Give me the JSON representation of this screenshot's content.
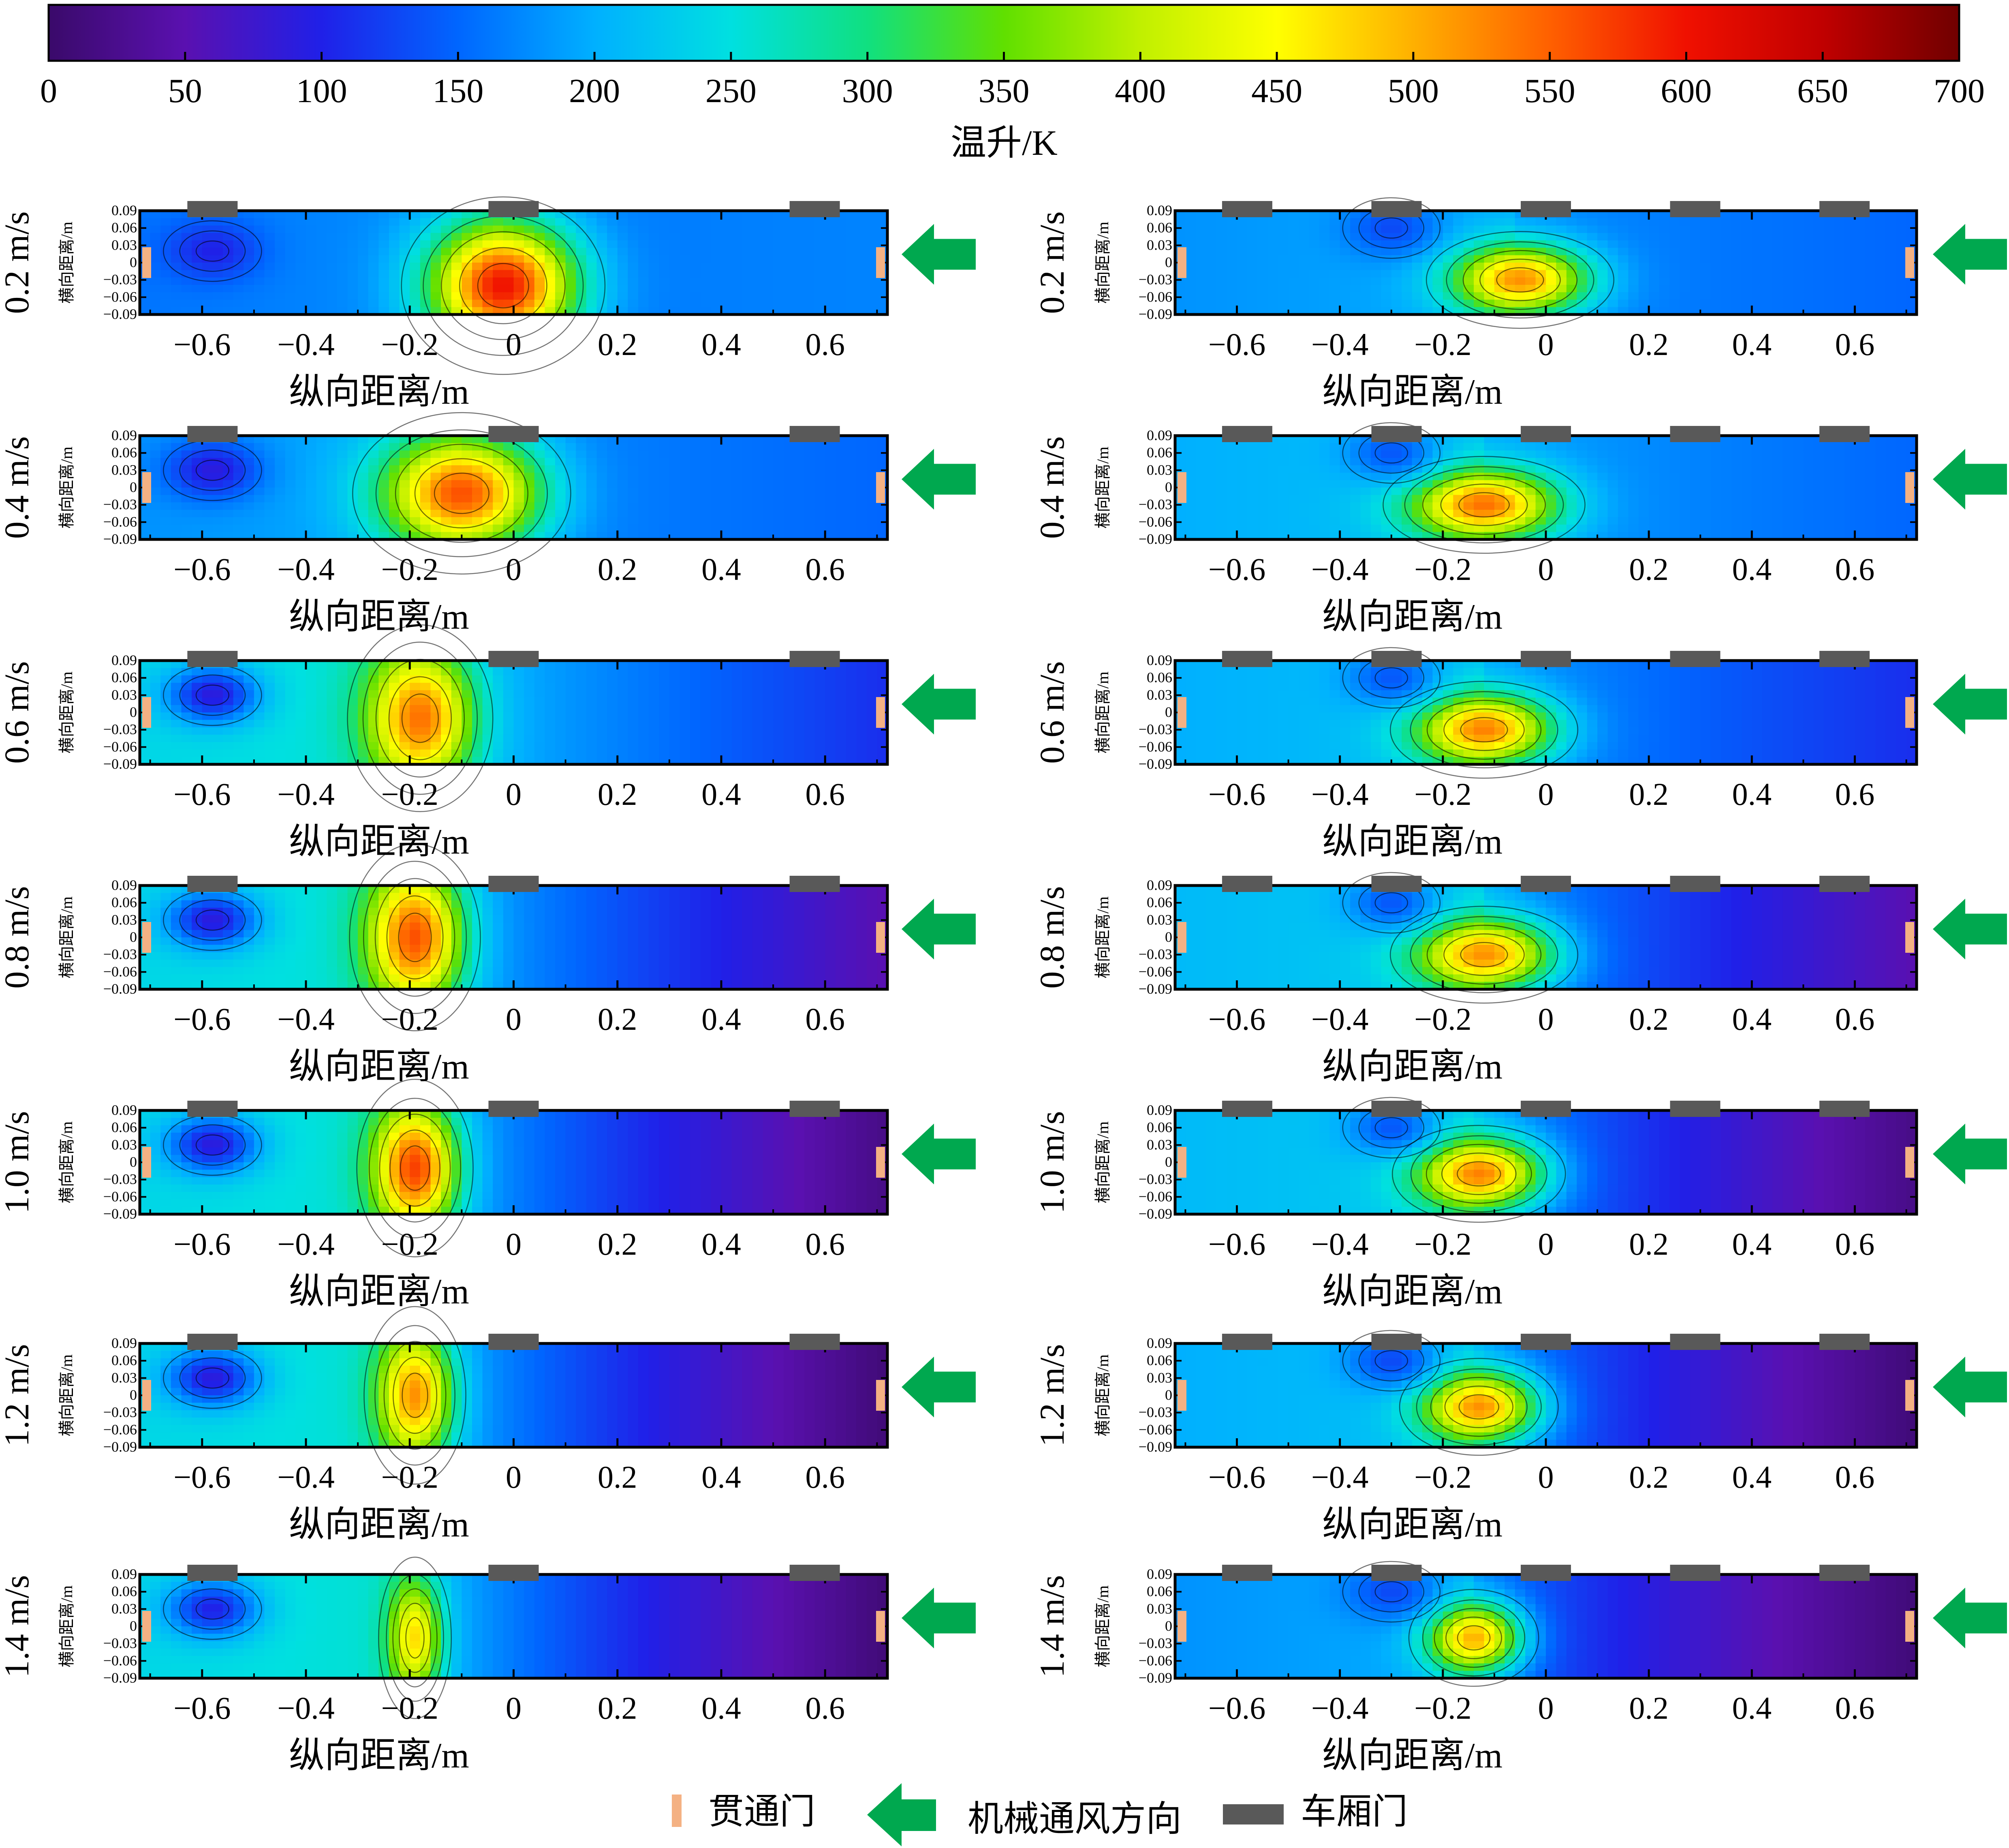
{
  "chart_data": {
    "type": "heatmap",
    "colorbar": {
      "title": "温升/K",
      "min": 0,
      "max": 700,
      "tick_labels": [
        "0",
        "50",
        "100",
        "150",
        "200",
        "250",
        "300",
        "350",
        "400",
        "450",
        "500",
        "550",
        "600",
        "650",
        "700"
      ],
      "colors": [
        "#3a0a6a",
        "#5a10b0",
        "#2020e8",
        "#0066ff",
        "#00b0ff",
        "#00e0e0",
        "#10e080",
        "#60e000",
        "#c0f000",
        "#ffff00",
        "#ffb000",
        "#ff6000",
        "#f01000",
        "#c00000",
        "#700000"
      ]
    },
    "x_ticks": [
      -0.6,
      -0.4,
      -0.2,
      0,
      0.2,
      0.4,
      0.6
    ],
    "x_tick_labels": [
      "−0.6",
      "−0.4",
      "−0.2",
      "0",
      "0.2",
      "0.4",
      "0.6"
    ],
    "y_tick_labels": [
      "0.09",
      "0.06",
      "0.03",
      "0",
      "−0.03",
      "−0.06",
      "−0.09"
    ],
    "xlim": [
      -0.72,
      0.72
    ],
    "ylim": [
      -0.09,
      0.09
    ],
    "xlabel": "纵向距离/m",
    "ylabel": "横向距离/m",
    "legend": {
      "passage_door": "贯通门",
      "airflow": "机械通风方向",
      "car_door": "车厢门"
    },
    "columns": [
      {
        "name": "left",
        "car_door_x": [
          -0.58,
          0.0,
          0.58
        ],
        "panels": [
          {
            "velocity": "0.2 m/s",
            "hot": {
              "x": -0.02,
              "y": -0.04,
              "peak": 600,
              "sx": 0.14,
              "sy": 0.11
            },
            "cool": {
              "x": -0.58,
              "y": 0.02,
              "peak": 100
            },
            "base": 160,
            "downstream_min": 170
          },
          {
            "velocity": "0.4 m/s",
            "hot": {
              "x": -0.1,
              "y": -0.01,
              "peak": 560,
              "sx": 0.15,
              "sy": 0.1
            },
            "cool": {
              "x": -0.58,
              "y": 0.03,
              "peak": 90
            },
            "base": 180,
            "downstream_min": 150
          },
          {
            "velocity": "0.6 m/s",
            "hot": {
              "x": -0.18,
              "y": -0.01,
              "peak": 540,
              "sx": 0.1,
              "sy": 0.12
            },
            "cool": {
              "x": -0.58,
              "y": 0.03,
              "peak": 90
            },
            "base": 240,
            "downstream_min": 110
          },
          {
            "velocity": "0.8 m/s",
            "hot": {
              "x": -0.19,
              "y": 0.0,
              "peak": 560,
              "sx": 0.09,
              "sy": 0.12
            },
            "cool": {
              "x": -0.58,
              "y": 0.03,
              "peak": 90
            },
            "base": 240,
            "downstream_min": 50
          },
          {
            "velocity": "1.0 m/s",
            "hot": {
              "x": -0.19,
              "y": -0.01,
              "peak": 570,
              "sx": 0.08,
              "sy": 0.11
            },
            "cool": {
              "x": -0.58,
              "y": 0.03,
              "peak": 90
            },
            "base": 240,
            "downstream_min": 20
          },
          {
            "velocity": "1.2 m/s",
            "hot": {
              "x": -0.19,
              "y": 0.0,
              "peak": 520,
              "sx": 0.07,
              "sy": 0.11
            },
            "cool": {
              "x": -0.58,
              "y": 0.03,
              "peak": 90
            },
            "base": 240,
            "downstream_min": 10
          },
          {
            "velocity": "1.4 m/s",
            "hot": {
              "x": -0.19,
              "y": -0.02,
              "peak": 470,
              "sx": 0.05,
              "sy": 0.1
            },
            "cool": {
              "x": -0.58,
              "y": 0.03,
              "peak": 100
            },
            "base": 240,
            "downstream_min": 10
          }
        ]
      },
      {
        "name": "right",
        "car_door_x": [
          -0.58,
          -0.29,
          0.0,
          0.29,
          0.58
        ],
        "panels": [
          {
            "velocity": "0.2 m/s",
            "hot": {
              "x": -0.05,
              "y": -0.03,
              "peak": 520,
              "sx": 0.13,
              "sy": 0.06
            },
            "cool": {
              "x": -0.3,
              "y": 0.06,
              "peak": 130
            },
            "base": 180,
            "downstream_min": 150
          },
          {
            "velocity": "0.4 m/s",
            "hot": {
              "x": -0.12,
              "y": -0.03,
              "peak": 540,
              "sx": 0.14,
              "sy": 0.06
            },
            "cool": {
              "x": -0.3,
              "y": 0.06,
              "peak": 140
            },
            "base": 200,
            "downstream_min": 150
          },
          {
            "velocity": "0.6 m/s",
            "hot": {
              "x": -0.12,
              "y": -0.03,
              "peak": 530,
              "sx": 0.13,
              "sy": 0.06
            },
            "cool": {
              "x": -0.3,
              "y": 0.06,
              "peak": 140
            },
            "base": 200,
            "downstream_min": 110
          },
          {
            "velocity": "0.8 m/s",
            "hot": {
              "x": -0.12,
              "y": -0.03,
              "peak": 520,
              "sx": 0.13,
              "sy": 0.06
            },
            "cool": {
              "x": -0.3,
              "y": 0.06,
              "peak": 140
            },
            "base": 210,
            "downstream_min": 50
          },
          {
            "velocity": "1.0 m/s",
            "hot": {
              "x": -0.13,
              "y": -0.02,
              "peak": 530,
              "sx": 0.12,
              "sy": 0.06
            },
            "cool": {
              "x": -0.3,
              "y": 0.06,
              "peak": 140
            },
            "base": 210,
            "downstream_min": 20
          },
          {
            "velocity": "1.2 m/s",
            "hot": {
              "x": -0.13,
              "y": -0.02,
              "peak": 520,
              "sx": 0.11,
              "sy": 0.06
            },
            "cool": {
              "x": -0.3,
              "y": 0.06,
              "peak": 130
            },
            "base": 200,
            "downstream_min": 10
          },
          {
            "velocity": "1.4 m/s",
            "hot": {
              "x": -0.14,
              "y": -0.02,
              "peak": 500,
              "sx": 0.09,
              "sy": 0.06
            },
            "cool": {
              "x": -0.3,
              "y": 0.06,
              "peak": 130
            },
            "base": 180,
            "downstream_min": 10
          }
        ]
      }
    ]
  }
}
